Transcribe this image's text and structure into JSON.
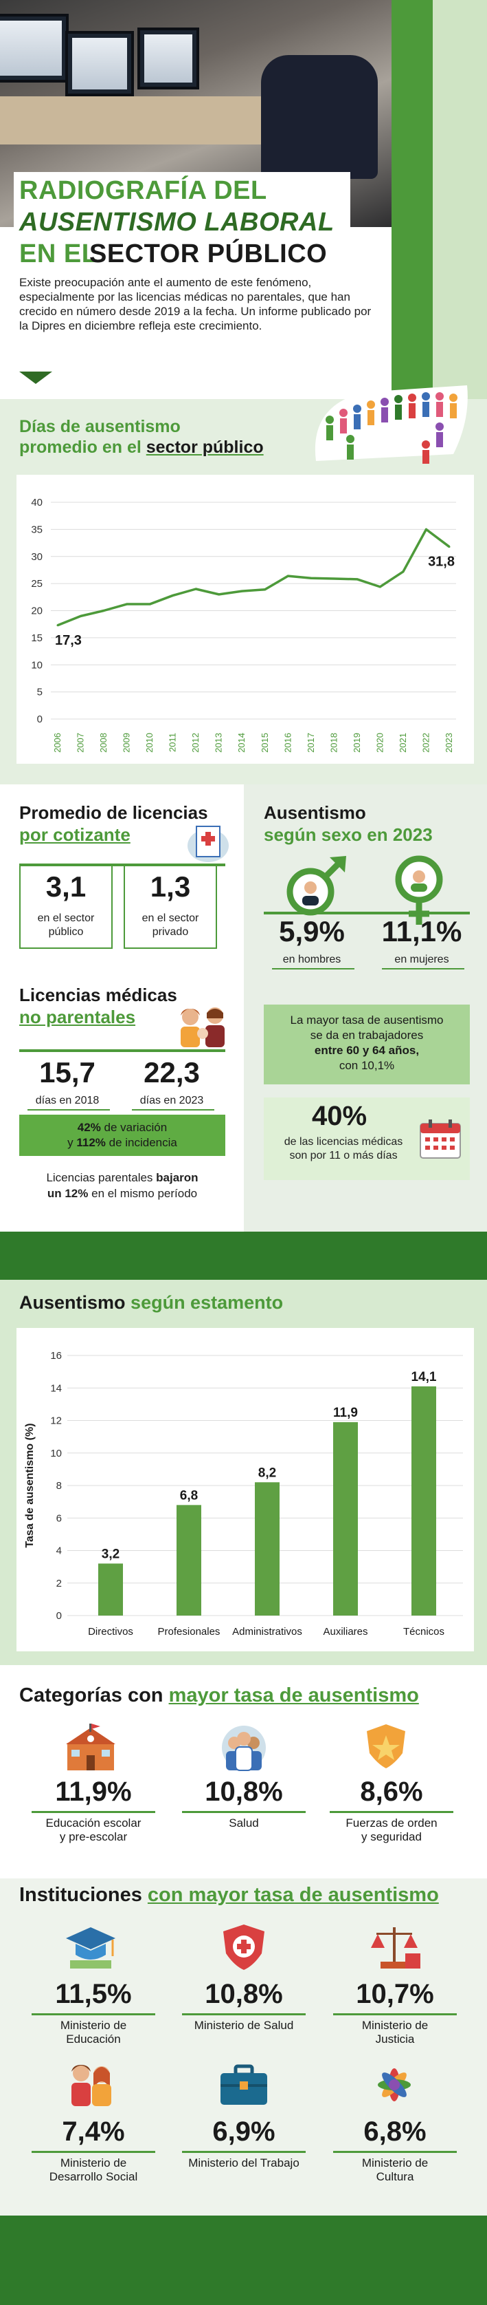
{
  "hero": {
    "title_line1": "RADIOGRAFÍA DEL",
    "title_line2": "AUSENTISMO LABORAL",
    "title_line3a": "EN EL",
    "title_line3b": "SECTOR PÚBLICO",
    "intro": "Existe preocupación ante el aumento de este fenómeno, especialmente por las licencias médicas no parentales, que han crecido en número desde 2019 a la fecha. Un informe publicado por la Dipres en diciembre refleja este crecimiento."
  },
  "line_section": {
    "title_line1": "Días de ausentismo",
    "title_line2_prefix": "promedio en el",
    "title_line2_highlight": "sector público"
  },
  "licencias": {
    "title_line1": "Promedio de licencias",
    "title_line2": "por cotizante",
    "public_value": "3,1",
    "public_label": "en el sector público",
    "private_value": "1,3",
    "private_label": "en el sector privado"
  },
  "no_parentales": {
    "title_line1": "Licencias médicas",
    "title_line2": "no parentales",
    "v2018": "15,7",
    "l2018": "días en 2018",
    "v2023": "22,3",
    "l2023": "días en 2023",
    "band_line1_bold": "42%",
    "band_line1_rest": " de variación",
    "band_line2_prefix": "y ",
    "band_line2_bold": "112%",
    "band_line2_rest": " de incidencia",
    "note_prefix": "Licencias parentales ",
    "note_bold1": "bajaron",
    "note_bold2": "un 12%",
    "note_rest": " en el mismo período"
  },
  "sexo": {
    "title_line1": "Ausentismo",
    "title_line2": "según sexo en 2023",
    "men_value": "5,9%",
    "men_label": "en hombres",
    "women_value": "11,1%",
    "women_label": "en mujeres",
    "age_line1": "La mayor tasa de ausentismo",
    "age_line2": "se da en trabajadores",
    "age_line3": "entre 60 y 64 años,",
    "age_line4": "con 10,1%",
    "days_value": "40%",
    "days_line1": "de las licencias médicas",
    "days_line2": "son por 11 o más días"
  },
  "bar_section": {
    "title_prefix": "Ausentismo",
    "title_highlight": "según estamento"
  },
  "categorias": {
    "title_prefix": "Categorías con",
    "title_highlight": "mayor tasa de ausentismo",
    "items": [
      {
        "value": "11,9%",
        "label_line1": "Educación escolar",
        "label_line2": "y pre-escolar",
        "icon": "school-icon"
      },
      {
        "value": "10,8%",
        "label_line1": "Salud",
        "label_line2": "",
        "icon": "health-workers-icon"
      },
      {
        "value": "8,6%",
        "label_line1": "Fuerzas de orden",
        "label_line2": "y seguridad",
        "icon": "police-badge-icon"
      }
    ]
  },
  "instituciones": {
    "title_prefix": "Instituciones",
    "title_highlight": "con mayor tasa de ausentismo",
    "items": [
      {
        "value": "11,5%",
        "label_line1": "Ministerio de",
        "label_line2": "Educación",
        "icon": "graduation-cap-icon"
      },
      {
        "value": "10,8%",
        "label_line1": "Ministerio de Salud",
        "label_line2": "",
        "icon": "medical-shield-icon"
      },
      {
        "value": "10,7%",
        "label_line1": "Ministerio de",
        "label_line2": "Justicia",
        "icon": "justice-scale-icon"
      },
      {
        "value": "7,4%",
        "label_line1": "Ministerio de",
        "label_line2": "Desarrollo Social",
        "icon": "family-icon"
      },
      {
        "value": "6,9%",
        "label_line1": "Ministerio del Trabajo",
        "label_line2": "",
        "icon": "briefcase-icon"
      },
      {
        "value": "6,8%",
        "label_line1": "Ministerio de",
        "label_line2": "Cultura",
        "icon": "culture-flower-icon"
      }
    ]
  },
  "colors": {
    "accent": "#4d9a3a",
    "dark_green": "#2f7a2a",
    "light_green": "#d7ead0"
  },
  "chart_data": [
    {
      "type": "line",
      "title": "Días de ausentismo promedio en el sector público",
      "x": [
        "2006",
        "2007",
        "2008",
        "2009",
        "2010",
        "2011",
        "2012",
        "2013",
        "2014",
        "2015",
        "2016",
        "2017",
        "2018",
        "2019",
        "2020",
        "2021",
        "2022",
        "2023"
      ],
      "series": [
        {
          "values": [
            17.3,
            19.0,
            20.0,
            21.2,
            21.2,
            22.8,
            24.0,
            23.0,
            23.6,
            23.9,
            26.4,
            26.0,
            25.9,
            25.8,
            24.4,
            27.2,
            35.0,
            31.8
          ]
        }
      ],
      "data_labels": {
        "first": "17,3",
        "last": "31,8"
      },
      "yticks": [
        0,
        5,
        10,
        15,
        20,
        25,
        30,
        35,
        40
      ],
      "ylim": [
        0,
        40
      ],
      "xlabel": "",
      "ylabel": "",
      "grid": true
    },
    {
      "type": "bar",
      "title": "Ausentismo según estamento",
      "categories": [
        "Directivos",
        "Profesionales",
        "Administrativos",
        "Auxiliares",
        "Técnicos"
      ],
      "values": [
        3.2,
        6.8,
        8.2,
        11.9,
        14.1
      ],
      "value_labels": [
        "3,2",
        "6,8",
        "8,2",
        "11,9",
        "14,1"
      ],
      "yticks": [
        0,
        2,
        4,
        6,
        8,
        10,
        12,
        14,
        16
      ],
      "ylim": [
        0,
        16
      ],
      "xlabel": "",
      "ylabel": "Tasa de ausentismo (%)",
      "grid": true
    }
  ]
}
